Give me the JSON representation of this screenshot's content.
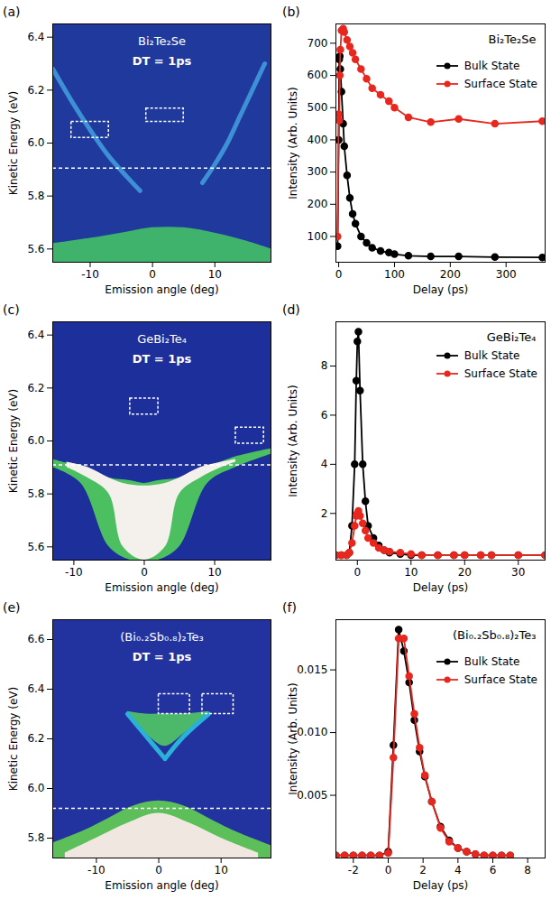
{
  "chart_data": [
    {
      "panel": "(a)",
      "type": "spectrum",
      "title": "Bi₂Te₂Se",
      "annotation": "DT = 1ps",
      "x_label": "Emission angle (deg)",
      "y_label": "Kinetic Energy (eV)",
      "xlim": [
        -16,
        19
      ],
      "xticks": [
        -10,
        0,
        10
      ],
      "ylim": [
        5.55,
        6.45
      ],
      "yticks": [
        5.6,
        5.8,
        {
          "value": 6,
          "label": "6.0"
        },
        6.2,
        6.4
      ],
      "background": "#1f3a9c",
      "regions": [
        {
          "x": [
            -16,
            -10,
            -5,
            0,
            5,
            10,
            15,
            19
          ],
          "y1": [
            5.55,
            5.55,
            5.55,
            5.55,
            5.55,
            5.55,
            5.55,
            5.55
          ],
          "y2": [
            5.62,
            5.64,
            5.66,
            5.68,
            5.68,
            5.66,
            5.63,
            5.6
          ],
          "color": "#3fb36c"
        }
      ],
      "bands": [
        {
          "x": [
            -16,
            -13,
            -10,
            -7,
            -4,
            -2
          ],
          "y": [
            6.28,
            6.16,
            6.05,
            5.95,
            5.87,
            5.82
          ],
          "color": "#3d8fd6"
        },
        {
          "x": [
            8,
            10,
            12,
            14,
            16,
            18
          ],
          "y": [
            5.85,
            5.92,
            6.0,
            6.1,
            6.2,
            6.3
          ],
          "color": "#3d8fd6"
        }
      ],
      "boxes": [
        {
          "x": [
            -13,
            -7
          ],
          "y": [
            6.02,
            6.08
          ]
        },
        {
          "x": [
            -1,
            5
          ],
          "y": [
            6.08,
            6.13
          ]
        }
      ],
      "dashed_line": 5.905
    },
    {
      "panel": "(b)",
      "type": "line",
      "title": "Bi₂Te₂Se",
      "x_label": "Delay (ps)",
      "y_label": "Intensity (Arb. Units)",
      "xlim": [
        -5,
        370
      ],
      "xticks": [
        0,
        100,
        200,
        300
      ],
      "ylim": [
        20,
        760
      ],
      "yticks": [
        100,
        200,
        300,
        400,
        500,
        600,
        700
      ],
      "legend": "right",
      "marker": "circle",
      "x": [
        -2,
        0,
        1,
        2,
        3,
        5,
        8,
        10,
        15,
        20,
        25,
        30,
        40,
        50,
        60,
        75,
        90,
        100,
        125,
        165,
        215,
        280,
        365
      ],
      "series": [
        {
          "name": "Bulk State",
          "color": "#000000",
          "values": [
            70,
            400,
            650,
            660,
            620,
            550,
            450,
            380,
            290,
            220,
            170,
            140,
            100,
            80,
            65,
            55,
            50,
            45,
            40,
            38,
            38,
            36,
            35
          ]
        },
        {
          "name": "Surface State",
          "color": "#e8271f",
          "values": [
            100,
            480,
            460,
            600,
            680,
            740,
            745,
            735,
            710,
            690,
            670,
            650,
            620,
            590,
            560,
            540,
            520,
            500,
            470,
            455,
            465,
            450,
            458
          ]
        }
      ]
    },
    {
      "panel": "(c)",
      "type": "spectrum",
      "title": "GeBi₂Te₄",
      "annotation": "DT = 1ps",
      "x_label": "Emission angle (deg)",
      "y_label": "Kinetic Energy (eV)",
      "xlim": [
        -13,
        18
      ],
      "xticks": [
        -10,
        0,
        10
      ],
      "ylim": [
        5.55,
        6.45
      ],
      "yticks": [
        5.6,
        5.8,
        {
          "value": 6,
          "label": "6.0"
        },
        6.2,
        6.4
      ],
      "background": "#1d2f9a",
      "regions": [
        {
          "x": [
            -13,
            -9,
            -5,
            -2,
            0,
            2,
            5,
            9,
            13,
            18
          ],
          "y1": [
            5.9,
            5.84,
            5.6,
            5.55,
            5.55,
            5.55,
            5.6,
            5.84,
            5.9,
            5.95
          ],
          "y2": [
            5.93,
            5.9,
            5.86,
            5.85,
            5.84,
            5.85,
            5.86,
            5.9,
            5.94,
            5.97
          ],
          "color": "#4cc060"
        },
        {
          "x": [
            -11,
            -8,
            -5,
            -3,
            0,
            3,
            5,
            8,
            11,
            13
          ],
          "y1": [
            5.9,
            5.86,
            5.8,
            5.6,
            5.55,
            5.6,
            5.8,
            5.86,
            5.9,
            5.92
          ],
          "y2": [
            5.92,
            5.9,
            5.86,
            5.84,
            5.83,
            5.84,
            5.86,
            5.9,
            5.92,
            5.93
          ],
          "color": "#f4f0ec"
        }
      ],
      "bands": [],
      "boxes": [
        {
          "x": [
            -2,
            2
          ],
          "y": [
            6.1,
            6.16
          ]
        },
        {
          "x": [
            13,
            17
          ],
          "y": [
            5.99,
            6.05
          ]
        }
      ],
      "dashed_line": 5.91
    },
    {
      "panel": "(d)",
      "type": "line",
      "title": "GeBi₂Te₄",
      "x_label": "Delay (ps)",
      "y_label": "Intensity (Arb. Units)",
      "xlim": [
        -4,
        35
      ],
      "xticks": [
        0,
        10,
        20,
        30
      ],
      "ylim": [
        0.1,
        9.8
      ],
      "yticks": [
        2,
        4,
        6,
        8
      ],
      "legend": "top-right",
      "marker": "circle",
      "x": [
        -4,
        -3,
        -2,
        -1.5,
        -1,
        -0.5,
        -0.2,
        0,
        0.2,
        0.5,
        1,
        1.5,
        2,
        3,
        4,
        5,
        6,
        8,
        10,
        12,
        15,
        18,
        20,
        23,
        25,
        30,
        35
      ],
      "series": [
        {
          "name": "Bulk State",
          "color": "#000000",
          "values": [
            0.3,
            0.3,
            0.3,
            0.4,
            1.5,
            4,
            7.4,
            9,
            9.4,
            7,
            4,
            2.5,
            1.5,
            1,
            0.7,
            0.5,
            0.4,
            0.35,
            0.3,
            0.3,
            0.3,
            0.3,
            0.3,
            0.3,
            0.3,
            0.3,
            0.3
          ]
        },
        {
          "name": "Surface State",
          "color": "#e8271f",
          "values": [
            0.3,
            0.3,
            0.3,
            0.4,
            0.8,
            1.5,
            1.9,
            2.0,
            2.1,
            1.9,
            1.6,
            1.3,
            1.0,
            0.8,
            0.6,
            0.5,
            0.45,
            0.4,
            0.35,
            0.3,
            0.3,
            0.3,
            0.3,
            0.3,
            0.3,
            0.3,
            0.3
          ]
        }
      ]
    },
    {
      "panel": "(e)",
      "type": "spectrum",
      "title": "(Bi₀.₂Sb₀.₈)₂Te₃",
      "annotation": "DT = 1ps",
      "x_label": "Emission angle (deg)",
      "y_label": "Kinetic Energy (eV)",
      "xlim": [
        -17,
        18
      ],
      "xticks": [
        -10,
        0,
        10
      ],
      "ylim": [
        5.72,
        6.68
      ],
      "yticks": [
        5.8,
        {
          "value": 6,
          "label": "6.0"
        },
        6.2,
        6.4,
        6.6
      ],
      "background": "#2233a0",
      "regions": [
        {
          "x": [
            -17,
            -12,
            -8,
            -4,
            0,
            4,
            8,
            12,
            18
          ],
          "y1": [
            5.72,
            5.72,
            5.72,
            5.72,
            5.72,
            5.72,
            5.72,
            5.72,
            5.72
          ],
          "y2": [
            5.78,
            5.83,
            5.88,
            5.93,
            5.95,
            5.93,
            5.88,
            5.83,
            5.77
          ],
          "color": "#5cbf5a"
        },
        {
          "x": [
            -15,
            -10,
            -5,
            0,
            5,
            10,
            16
          ],
          "y1": [
            5.72,
            5.72,
            5.72,
            5.72,
            5.72,
            5.72,
            5.72
          ],
          "y2": [
            5.74,
            5.8,
            5.86,
            5.9,
            5.86,
            5.8,
            5.74
          ],
          "color": "#f0e8e0"
        },
        {
          "x": [
            -5,
            -2,
            1,
            4,
            8
          ],
          "y1": [
            6.3,
            6.22,
            6.17,
            6.22,
            6.3
          ],
          "y2": [
            6.31,
            6.3,
            6.3,
            6.3,
            6.31
          ],
          "color": "#4cb86a"
        }
      ],
      "bands": [
        {
          "x": [
            -5,
            -2,
            1
          ],
          "y": [
            6.3,
            6.21,
            6.12
          ],
          "color": "#2bb0d8"
        },
        {
          "x": [
            1,
            4,
            8
          ],
          "y": [
            6.12,
            6.21,
            6.3
          ],
          "color": "#2bb0d8"
        }
      ],
      "boxes": [
        {
          "x": [
            0,
            5
          ],
          "y": [
            6.3,
            6.38
          ]
        },
        {
          "x": [
            7,
            12
          ],
          "y": [
            6.3,
            6.38
          ]
        }
      ],
      "dashed_line": 5.92
    },
    {
      "panel": "(f)",
      "type": "line",
      "title": "(Bi₀.₂Sb₀.₈)₂Te₃",
      "x_label": "Delay (ps)",
      "y_label": "Intensity (Arb. Units)",
      "xlim": [
        -3,
        9
      ],
      "xticks": [
        -2,
        0,
        2,
        4,
        6,
        8
      ],
      "ylim": [
        0,
        0.019
      ],
      "yticks": [
        0.005,
        {
          "value": 0.01,
          "label": "0.010"
        },
        0.015
      ],
      "legend": "right",
      "marker": "circle",
      "x": [
        -3,
        -2.5,
        -2,
        -1.5,
        -1,
        -0.5,
        0,
        0.3,
        0.6,
        0.9,
        1.2,
        1.5,
        1.8,
        2.1,
        2.5,
        3,
        3.5,
        4,
        4.5,
        5,
        5.5,
        6,
        6.5,
        7
      ],
      "series": [
        {
          "name": "Bulk State",
          "color": "#000000",
          "values": [
            0.0002,
            0.0002,
            0.0002,
            0.0002,
            0.0002,
            0.0002,
            0.0005,
            0.009,
            0.0182,
            0.0165,
            0.014,
            0.011,
            0.0085,
            0.0065,
            0.0045,
            0.0025,
            0.0014,
            0.0008,
            0.0005,
            0.0003,
            0.0002,
            0.0002,
            0.0002,
            0.0002
          ]
        },
        {
          "name": "Surface State",
          "color": "#e8271f",
          "values": [
            0.0002,
            0.0002,
            0.0002,
            0.0002,
            0.0002,
            0.0002,
            0.0004,
            0.008,
            0.0175,
            0.0175,
            0.0145,
            0.0115,
            0.0088,
            0.0066,
            0.0045,
            0.0024,
            0.0013,
            0.0008,
            0.0005,
            0.0003,
            0.0002,
            0.0002,
            0.0002,
            0.0002
          ]
        }
      ]
    }
  ]
}
